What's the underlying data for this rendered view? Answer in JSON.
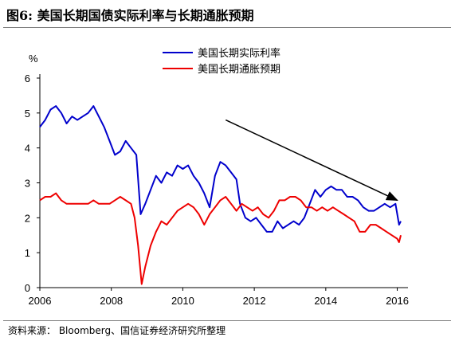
{
  "header": {
    "title": "图6:  美国长期国债实际利率与长期通胀预期"
  },
  "source": "资料来源： Bloomberg、国信证券经济研究所整理",
  "colors": {
    "real_rate": "#0000CC",
    "inflation": "#EE0000",
    "arrow": "#000000"
  },
  "chart_data": {
    "type": "line",
    "ylabel": "%",
    "xlim": [
      2006.0,
      2016.3
    ],
    "ylim": [
      0,
      6
    ],
    "yticks": [
      "0",
      "1",
      "2",
      "3",
      "4",
      "5",
      "6"
    ],
    "xticks": [
      "2006",
      "2008",
      "2010",
      "2012",
      "2014",
      "2016"
    ],
    "legend": "top-center",
    "grid": false,
    "annotations": [
      {
        "type": "arrow",
        "from": [
          2011.2,
          4.8
        ],
        "to": [
          2016.0,
          2.5
        ]
      }
    ],
    "series": [
      {
        "name": "美国长期实际利率",
        "color": "#0000CC",
        "points": [
          [
            2006.0,
            4.6
          ],
          [
            2006.15,
            4.8
          ],
          [
            2006.3,
            5.1
          ],
          [
            2006.45,
            5.2
          ],
          [
            2006.6,
            5.0
          ],
          [
            2006.75,
            4.7
          ],
          [
            2006.9,
            4.9
          ],
          [
            2007.05,
            4.8
          ],
          [
            2007.2,
            4.9
          ],
          [
            2007.35,
            5.0
          ],
          [
            2007.5,
            5.2
          ],
          [
            2007.65,
            4.9
          ],
          [
            2007.8,
            4.6
          ],
          [
            2007.95,
            4.2
          ],
          [
            2008.1,
            3.8
          ],
          [
            2008.25,
            3.9
          ],
          [
            2008.4,
            4.2
          ],
          [
            2008.55,
            4.0
          ],
          [
            2008.7,
            3.8
          ],
          [
            2008.82,
            2.1
          ],
          [
            2008.95,
            2.4
          ],
          [
            2009.1,
            2.8
          ],
          [
            2009.25,
            3.2
          ],
          [
            2009.4,
            3.0
          ],
          [
            2009.55,
            3.3
          ],
          [
            2009.7,
            3.2
          ],
          [
            2009.85,
            3.5
          ],
          [
            2010.0,
            3.4
          ],
          [
            2010.15,
            3.5
          ],
          [
            2010.3,
            3.2
          ],
          [
            2010.45,
            3.0
          ],
          [
            2010.6,
            2.7
          ],
          [
            2010.75,
            2.3
          ],
          [
            2010.9,
            3.2
          ],
          [
            2011.05,
            3.6
          ],
          [
            2011.2,
            3.5
          ],
          [
            2011.35,
            3.3
          ],
          [
            2011.5,
            3.1
          ],
          [
            2011.6,
            2.4
          ],
          [
            2011.75,
            2.0
          ],
          [
            2011.9,
            1.9
          ],
          [
            2012.05,
            2.0
          ],
          [
            2012.2,
            1.8
          ],
          [
            2012.35,
            1.6
          ],
          [
            2012.5,
            1.6
          ],
          [
            2012.65,
            1.9
          ],
          [
            2012.8,
            1.7
          ],
          [
            2012.95,
            1.8
          ],
          [
            2013.1,
            1.9
          ],
          [
            2013.25,
            1.8
          ],
          [
            2013.4,
            2.0
          ],
          [
            2013.55,
            2.4
          ],
          [
            2013.7,
            2.8
          ],
          [
            2013.85,
            2.6
          ],
          [
            2014.0,
            2.8
          ],
          [
            2014.15,
            2.9
          ],
          [
            2014.3,
            2.8
          ],
          [
            2014.45,
            2.8
          ],
          [
            2014.6,
            2.6
          ],
          [
            2014.75,
            2.6
          ],
          [
            2014.9,
            2.5
          ],
          [
            2015.05,
            2.3
          ],
          [
            2015.2,
            2.2
          ],
          [
            2015.35,
            2.2
          ],
          [
            2015.5,
            2.3
          ],
          [
            2015.65,
            2.4
          ],
          [
            2015.8,
            2.3
          ],
          [
            2015.95,
            2.4
          ],
          [
            2016.05,
            1.8
          ],
          [
            2016.1,
            1.9
          ]
        ]
      },
      {
        "name": "美国长期通胀预期",
        "color": "#EE0000",
        "points": [
          [
            2006.0,
            2.5
          ],
          [
            2006.15,
            2.6
          ],
          [
            2006.3,
            2.6
          ],
          [
            2006.45,
            2.7
          ],
          [
            2006.6,
            2.5
          ],
          [
            2006.75,
            2.4
          ],
          [
            2006.9,
            2.4
          ],
          [
            2007.05,
            2.4
          ],
          [
            2007.2,
            2.4
          ],
          [
            2007.35,
            2.4
          ],
          [
            2007.5,
            2.5
          ],
          [
            2007.65,
            2.4
          ],
          [
            2007.8,
            2.4
          ],
          [
            2007.95,
            2.4
          ],
          [
            2008.1,
            2.5
          ],
          [
            2008.25,
            2.6
          ],
          [
            2008.4,
            2.5
          ],
          [
            2008.55,
            2.4
          ],
          [
            2008.65,
            2.0
          ],
          [
            2008.75,
            1.2
          ],
          [
            2008.85,
            0.1
          ],
          [
            2008.95,
            0.6
          ],
          [
            2009.1,
            1.2
          ],
          [
            2009.25,
            1.6
          ],
          [
            2009.4,
            1.9
          ],
          [
            2009.55,
            1.8
          ],
          [
            2009.7,
            2.0
          ],
          [
            2009.85,
            2.2
          ],
          [
            2010.0,
            2.3
          ],
          [
            2010.15,
            2.4
          ],
          [
            2010.3,
            2.3
          ],
          [
            2010.45,
            2.1
          ],
          [
            2010.6,
            1.8
          ],
          [
            2010.75,
            2.1
          ],
          [
            2010.9,
            2.3
          ],
          [
            2011.05,
            2.5
          ],
          [
            2011.2,
            2.6
          ],
          [
            2011.35,
            2.4
          ],
          [
            2011.5,
            2.2
          ],
          [
            2011.65,
            2.4
          ],
          [
            2011.8,
            2.3
          ],
          [
            2011.95,
            2.2
          ],
          [
            2012.1,
            2.3
          ],
          [
            2012.25,
            2.1
          ],
          [
            2012.4,
            2.0
          ],
          [
            2012.55,
            2.2
          ],
          [
            2012.7,
            2.5
          ],
          [
            2012.85,
            2.5
          ],
          [
            2013.0,
            2.6
          ],
          [
            2013.15,
            2.6
          ],
          [
            2013.3,
            2.5
          ],
          [
            2013.45,
            2.3
          ],
          [
            2013.6,
            2.3
          ],
          [
            2013.75,
            2.2
          ],
          [
            2013.9,
            2.3
          ],
          [
            2014.05,
            2.2
          ],
          [
            2014.2,
            2.3
          ],
          [
            2014.35,
            2.2
          ],
          [
            2014.5,
            2.1
          ],
          [
            2014.65,
            2.0
          ],
          [
            2014.8,
            1.9
          ],
          [
            2014.95,
            1.6
          ],
          [
            2015.1,
            1.6
          ],
          [
            2015.25,
            1.8
          ],
          [
            2015.4,
            1.8
          ],
          [
            2015.55,
            1.7
          ],
          [
            2015.7,
            1.6
          ],
          [
            2015.85,
            1.5
          ],
          [
            2016.0,
            1.4
          ],
          [
            2016.05,
            1.3
          ],
          [
            2016.1,
            1.5
          ]
        ]
      }
    ]
  }
}
